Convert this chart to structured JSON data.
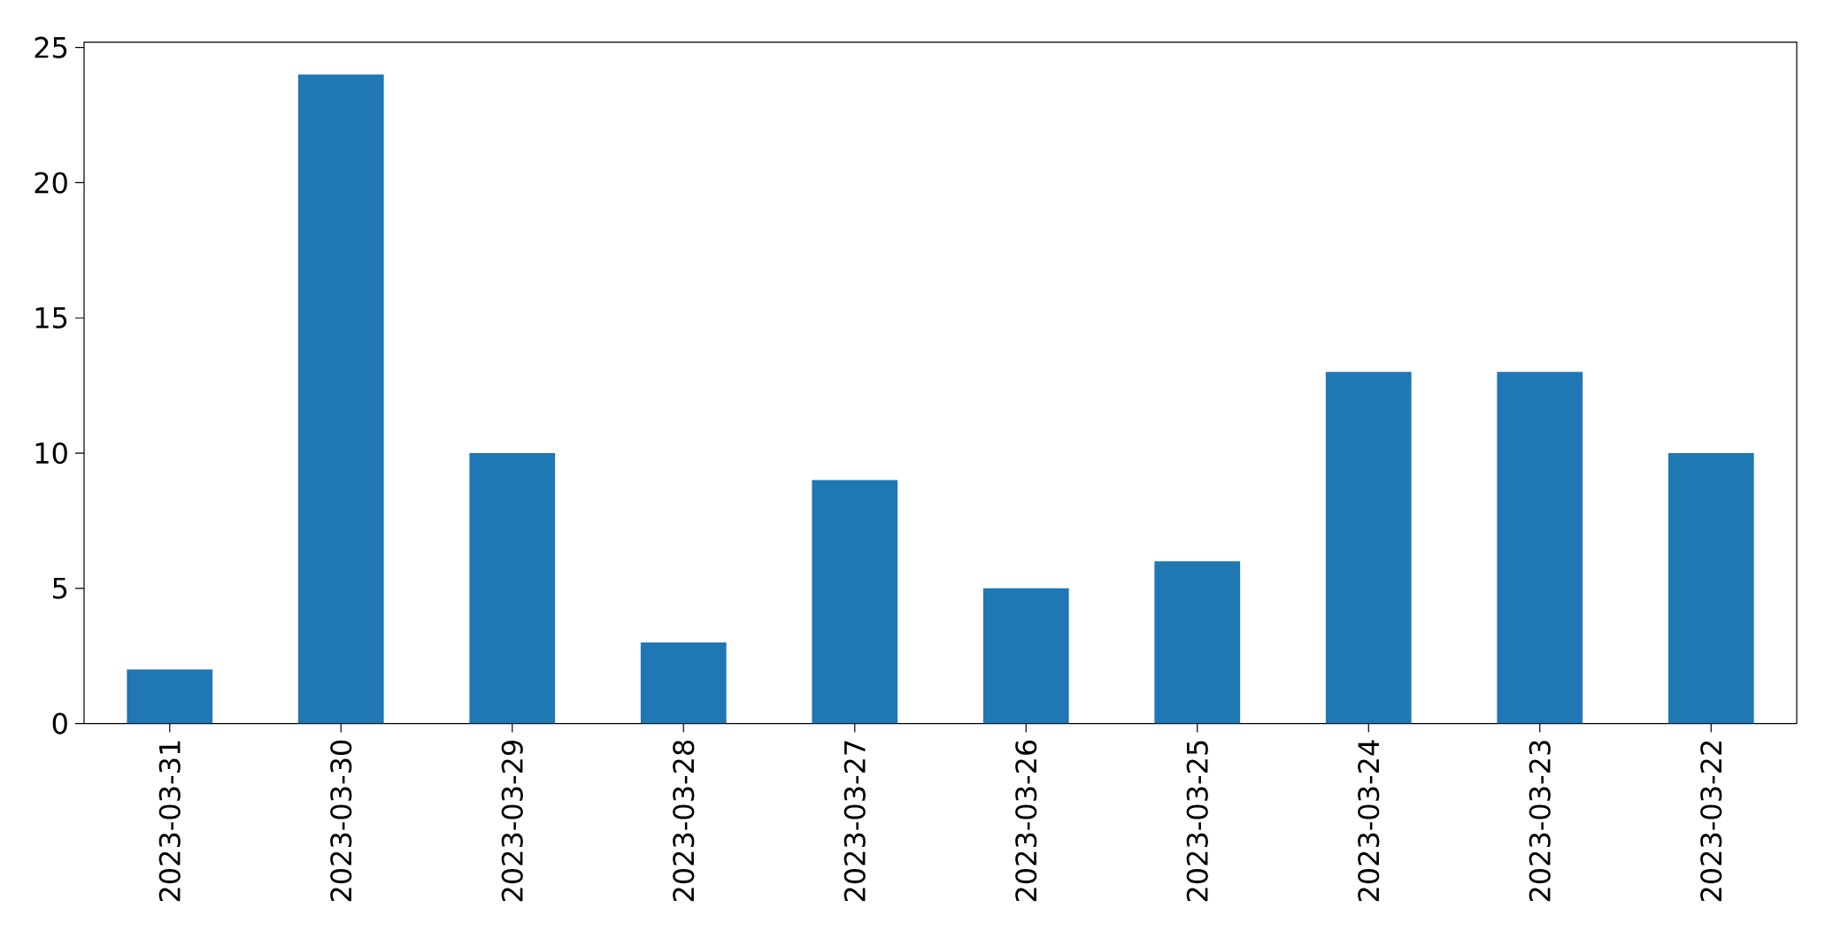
{
  "chart_data": {
    "type": "bar",
    "categories": [
      "2023-03-31",
      "2023-03-30",
      "2023-03-29",
      "2023-03-28",
      "2023-03-27",
      "2023-03-26",
      "2023-03-25",
      "2023-03-24",
      "2023-03-23",
      "2023-03-22"
    ],
    "values": [
      2,
      24,
      10,
      3,
      9,
      5,
      6,
      13,
      13,
      10
    ],
    "color": "#1f77b4",
    "ylim": [
      0,
      25.2
    ],
    "yticks": [
      0,
      5,
      10,
      15,
      20,
      25
    ],
    "grid": false
  }
}
